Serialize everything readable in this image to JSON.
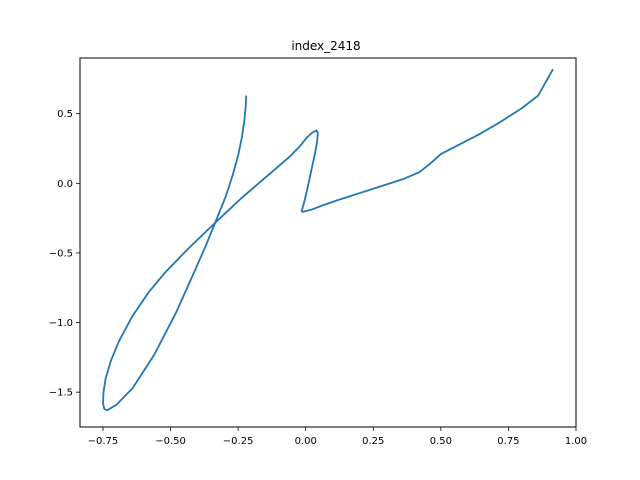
{
  "chart_data": {
    "type": "line",
    "title": "index_2418",
    "xlabel": "",
    "ylabel": "",
    "xlim": [
      -0.835,
      1.0
    ],
    "ylim": [
      -1.75,
      0.9
    ],
    "grid": false,
    "legend": "none",
    "x_ticks": [
      -0.75,
      -0.5,
      -0.25,
      0.0,
      0.25,
      0.5,
      0.75,
      1.0
    ],
    "x_tick_labels": [
      "−0.75",
      "−0.50",
      "−0.25",
      "0.00",
      "0.25",
      "0.50",
      "0.75",
      "1.00"
    ],
    "y_ticks": [
      0.5,
      0.0,
      -0.5,
      -1.0,
      -1.5
    ],
    "y_tick_labels": [
      "0.5",
      "0.0",
      "−0.5",
      "−1.0",
      "−1.5"
    ],
    "series": [
      {
        "color": "#1f77b4",
        "x": [
          -0.22,
          -0.222,
          -0.227,
          -0.236,
          -0.25,
          -0.27,
          -0.295,
          -0.33,
          -0.37,
          -0.42,
          -0.48,
          -0.56,
          -0.64,
          -0.7,
          -0.735,
          -0.745,
          -0.75,
          -0.748,
          -0.74,
          -0.72,
          -0.69,
          -0.64,
          -0.58,
          -0.52,
          -0.44,
          -0.36,
          -0.3,
          -0.24,
          -0.18,
          -0.12,
          -0.06,
          -0.02,
          0.005,
          0.025,
          0.04,
          0.045,
          0.042,
          0.035,
          0.025,
          0.015,
          0.005,
          -0.005,
          -0.012,
          -0.015,
          -0.012,
          0.0,
          0.02,
          0.06,
          0.12,
          0.2,
          0.28,
          0.36,
          0.42,
          0.46,
          0.5,
          0.56,
          0.64,
          0.72,
          0.8,
          0.86,
          0.915
        ],
        "y": [
          0.63,
          0.55,
          0.45,
          0.33,
          0.2,
          0.06,
          -0.09,
          -0.26,
          -0.45,
          -0.67,
          -0.93,
          -1.23,
          -1.47,
          -1.59,
          -1.63,
          -1.62,
          -1.58,
          -1.5,
          -1.4,
          -1.27,
          -1.13,
          -0.95,
          -0.78,
          -0.64,
          -0.48,
          -0.33,
          -0.22,
          -0.11,
          -0.01,
          0.09,
          0.19,
          0.27,
          0.33,
          0.365,
          0.38,
          0.36,
          0.3,
          0.22,
          0.13,
          0.04,
          -0.05,
          -0.13,
          -0.18,
          -0.2,
          -0.205,
          -0.2,
          -0.19,
          -0.16,
          -0.12,
          -0.07,
          -0.02,
          0.03,
          0.08,
          0.14,
          0.21,
          0.27,
          0.35,
          0.44,
          0.54,
          0.63,
          0.82
        ]
      }
    ]
  }
}
